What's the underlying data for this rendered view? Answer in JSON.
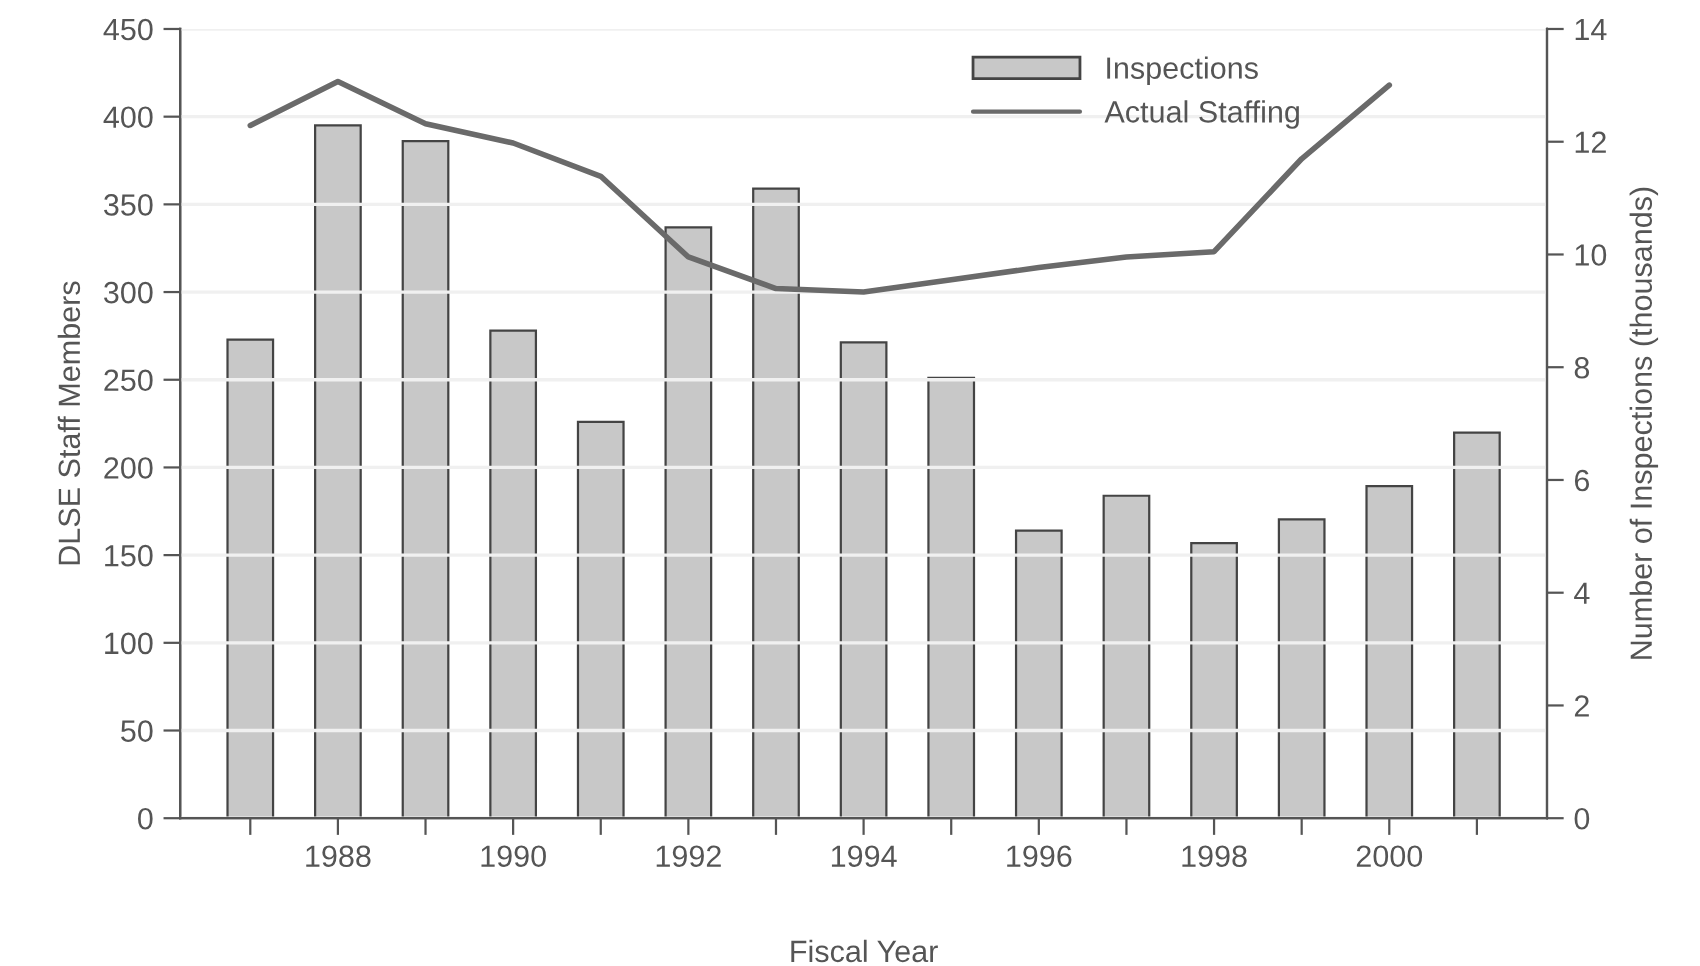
{
  "chart_data": {
    "type": "bar",
    "xlabel": "Fiscal Year",
    "ylabel": "DLSE Staff Members",
    "y2label": "Number of Inspections (thousands)",
    "x": [
      1987,
      1988,
      1989,
      1990,
      1991,
      1992,
      1993,
      1994,
      1995,
      1996,
      1997,
      1998,
      1999,
      2000,
      2001
    ],
    "series": [
      {
        "name": "Inspections",
        "axis": "y2",
        "color": "#c8c8c8",
        "values": [
          8.49,
          12.29,
          12.01,
          8.65,
          7.03,
          10.48,
          11.17,
          8.44,
          7.81,
          5.1,
          5.72,
          4.88,
          5.3,
          5.89,
          6.84
        ]
      },
      {
        "name": "Actual Staffing",
        "type": "line",
        "axis": "y",
        "color": "#6a6a6a",
        "x": [
          1987,
          1988,
          1989,
          1990,
          1991,
          1992,
          1993,
          1994,
          1995,
          1996,
          1997,
          1998,
          1999,
          2000
        ],
        "values": [
          395,
          420,
          396,
          385,
          366,
          320,
          302,
          300,
          307,
          314,
          320,
          323,
          376,
          418
        ]
      }
    ],
    "xlim": [
      1986.2,
      2001.8
    ],
    "xticks": [
      {
        "value": 1987,
        "label": null
      },
      1988,
      {
        "value": 1989,
        "label": null
      },
      1990,
      {
        "value": 1991,
        "label": null
      },
      1992,
      {
        "value": 1993,
        "label": null
      },
      1994,
      {
        "value": 1995,
        "label": null
      },
      1996,
      {
        "value": 1997,
        "label": null
      },
      1998,
      {
        "value": 1999,
        "label": null
      },
      2000,
      {
        "value": 2001,
        "label": null
      }
    ],
    "ylim": [
      0,
      450
    ],
    "yticks": [
      0,
      50,
      100,
      150,
      200,
      250,
      300,
      350,
      400,
      450
    ],
    "y2lim": [
      0,
      14
    ],
    "y2ticks": [
      0,
      2,
      4,
      6,
      8,
      10,
      12,
      14
    ],
    "grid": "y",
    "legend": "top",
    "marker": "none",
    "line_style": "solid"
  }
}
